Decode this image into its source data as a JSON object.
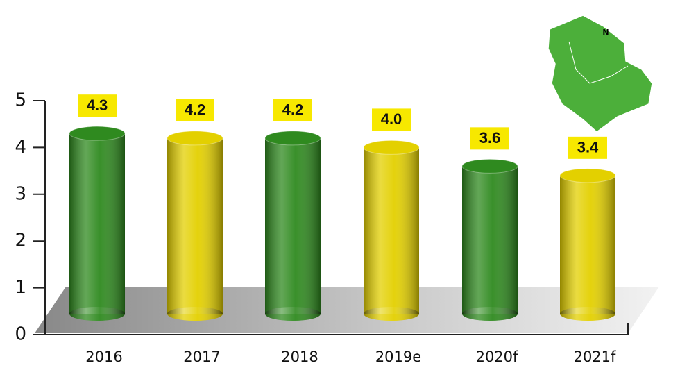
{
  "chart_data": {
    "type": "bar",
    "categories": [
      "2016",
      "2017",
      "2018",
      "2019e",
      "2020f",
      "2021f"
    ],
    "values": [
      4.3,
      4.2,
      4.2,
      4.0,
      3.6,
      3.4
    ],
    "value_labels": [
      "4.3",
      "4.2",
      "4.2",
      "4.0",
      "3.6",
      "3.4"
    ],
    "colors": [
      "#2f8a1f",
      "#e3d000",
      "#2f8a1f",
      "#e3d000",
      "#2f8a1f",
      "#e3d000"
    ],
    "ylim": [
      0,
      5
    ],
    "yticks": [
      0,
      1,
      2,
      3,
      4,
      5
    ],
    "map_label": "N"
  }
}
